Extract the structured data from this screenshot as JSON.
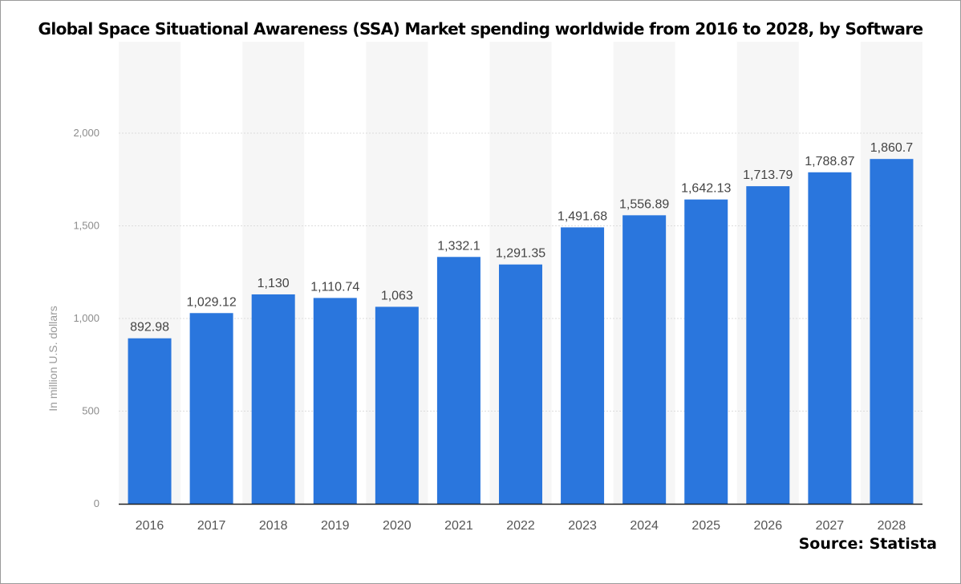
{
  "header": {
    "title": "Global Space Situational Awareness (SSA) Market spending worldwide from 2016 to 2028, by Software"
  },
  "footer": {
    "source": "Source: Statista"
  },
  "chart_data": {
    "type": "bar",
    "title": "Global Space Situational Awareness (SSA) Market spending worldwide from 2016 to 2028, by Software",
    "xlabel": "",
    "ylabel": "In million U.S. dollars",
    "categories": [
      "2016",
      "2017",
      "2018",
      "2019",
      "2020",
      "2021",
      "2022",
      "2023",
      "2024",
      "2025",
      "2026",
      "2027",
      "2028"
    ],
    "values": [
      892.98,
      1029.12,
      1130,
      1110.74,
      1063,
      1332.1,
      1291.35,
      1491.68,
      1556.89,
      1642.13,
      1713.79,
      1788.87,
      1860.7
    ],
    "data_labels": [
      "892.98",
      "1,029.12",
      "1,130",
      "1,110.74",
      "1,063",
      "1,332.1",
      "1,291.35",
      "1,491.68",
      "1,556.89",
      "1,642.13",
      "1,713.79",
      "1,788.87",
      "1,860.7"
    ],
    "yticks": [
      0,
      500,
      1000,
      1500,
      2000
    ],
    "ytick_labels": [
      "0",
      "500",
      "1,000",
      "1,500",
      "2,000"
    ],
    "ylim": [
      0,
      2000
    ],
    "grid": true,
    "legend": "none",
    "colors": {
      "bar": "#2a76dd",
      "band": "#f6f6f6",
      "grid": "#dcdcdc",
      "axis": "#222222"
    }
  }
}
